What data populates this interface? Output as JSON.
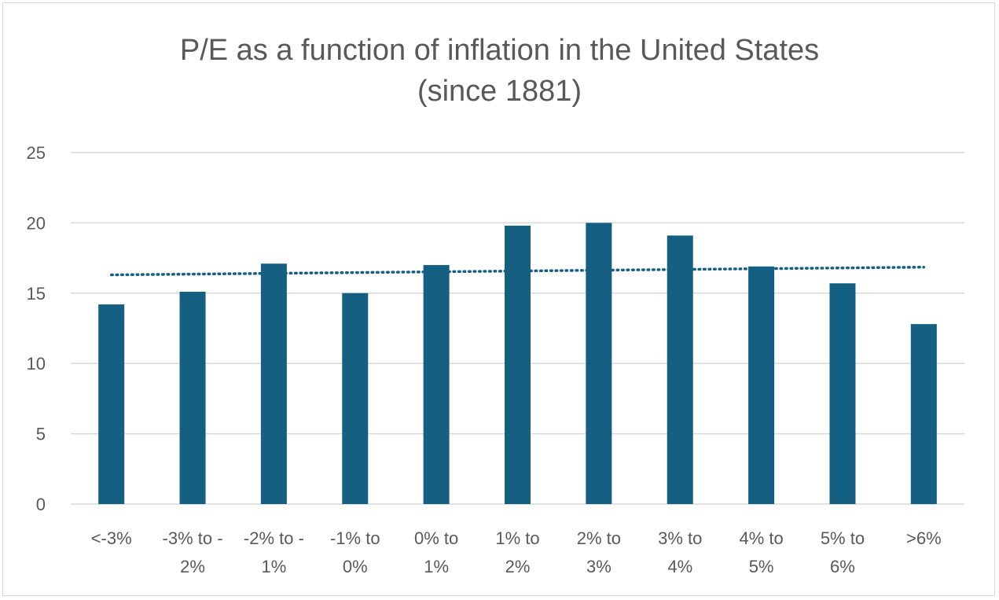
{
  "chart_data": {
    "type": "bar",
    "title_lines": [
      "P/E as a function of inflation in the United States",
      "(since 1881)"
    ],
    "categories": [
      [
        "<-3%"
      ],
      [
        "-3% to -",
        "2%"
      ],
      [
        "-2% to -",
        "1%"
      ],
      [
        "-1% to",
        "0%"
      ],
      [
        "0% to",
        "1%"
      ],
      [
        "1% to",
        "2%"
      ],
      [
        "2% to",
        "3%"
      ],
      [
        "3% to",
        "4%"
      ],
      [
        "4% to",
        "5%"
      ],
      [
        "5% to",
        "6%"
      ],
      [
        ">6%"
      ]
    ],
    "values": [
      14.2,
      15.1,
      17.1,
      15.0,
      17.0,
      19.8,
      20.0,
      19.1,
      16.9,
      15.7,
      12.8
    ],
    "trendline": {
      "type": "linear",
      "style": "dotted",
      "start": 16.3,
      "end": 16.85
    },
    "ylim": [
      0,
      25
    ],
    "yticks": [
      0,
      5,
      10,
      15,
      20,
      25
    ],
    "grid": true,
    "legend": "none",
    "colors": {
      "bar": "#156082",
      "trendline": "#156082",
      "grid": "#d9d9d9",
      "text": "#595959"
    }
  }
}
